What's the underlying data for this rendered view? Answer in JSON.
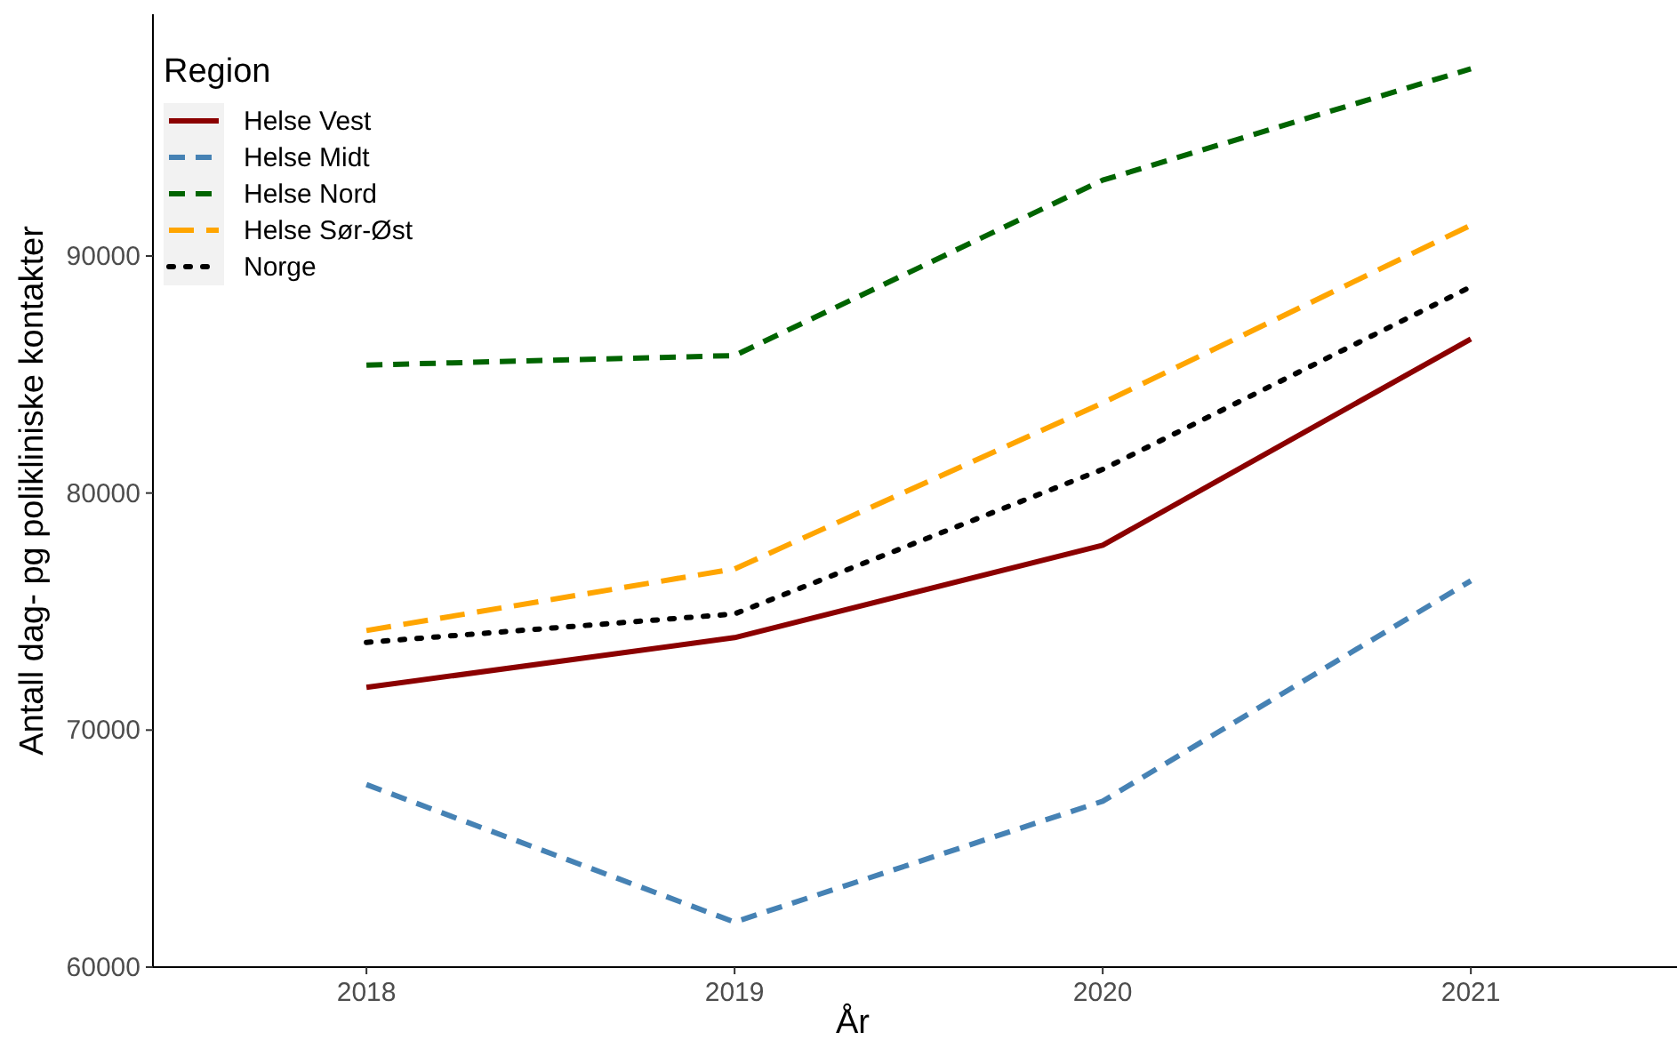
{
  "chart_data": {
    "type": "line",
    "xlabel": "År",
    "ylabel": "Antall dag- pg polikliniske kontakter",
    "legend_title": "Region",
    "legend": "top left",
    "grid": false,
    "x": [
      2018,
      2019,
      2020,
      2021
    ],
    "xlim": [
      2017.42,
      2021.56
    ],
    "xticks": [
      2018,
      2019,
      2020,
      2021
    ],
    "ylim": [
      60000,
      100200
    ],
    "yticks": [
      60000,
      70000,
      80000,
      90000
    ],
    "series": [
      {
        "name": "Helse Vest",
        "color": "#8b0000",
        "line_style": "solid",
        "values": [
          71800,
          73900,
          77800,
          86500
        ]
      },
      {
        "name": "Helse Midt",
        "color": "#4682b4",
        "line_style": "dashed",
        "values": [
          67700,
          61900,
          67000,
          76300
        ]
      },
      {
        "name": "Helse Nord",
        "color": "#006400",
        "line_style": "dashed",
        "values": [
          85400,
          85800,
          93200,
          97900
        ]
      },
      {
        "name": "Helse Sør-Øst",
        "color": "#ffa500",
        "line_style": "longdash",
        "values": [
          74200,
          76800,
          83800,
          91300
        ]
      },
      {
        "name": "Norge",
        "color": "#000000",
        "line_style": "dotted",
        "values": [
          73700,
          74900,
          81000,
          88700
        ]
      }
    ]
  }
}
